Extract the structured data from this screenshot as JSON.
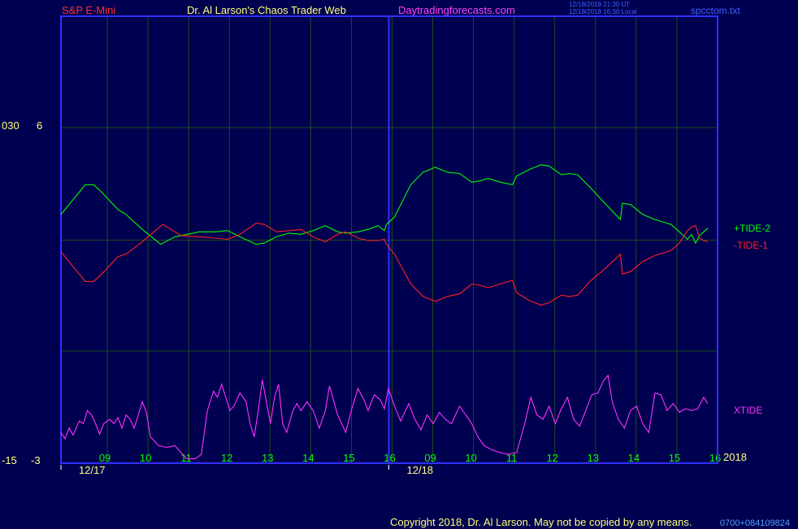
{
  "header": {
    "instrument": "S&P E-Mini",
    "site_title": "Dr. Al Larson's Chaos Trader Web",
    "site_url": "Daytradingforecasts.com",
    "timestamp_line1": "12/18/2018 21:30 UT",
    "timestamp_line2": "12/18/2018 16:30 Local",
    "file_name": "spcctom.txt"
  },
  "left_scale": {
    "top_left_label": "030",
    "top_right_label": "6",
    "bottom_left_label": "-15",
    "bottom_right_label": "-3"
  },
  "colors": {
    "background": "#000050",
    "frame": "#3030ff",
    "grid": "#1c4a1c",
    "tide_plus": "#00ff00",
    "tide_minus": "#ff2020",
    "xtide": "#ff30ff",
    "hour_label": "#00ff00",
    "date_label": "#ffff80",
    "instrument_label": "#ff3030",
    "title_label": "#ffff80",
    "url_label": "#ff40ff",
    "info_label": "#4060ff"
  },
  "footer": {
    "copyright": "Copyright 2018, Dr. Al Larson. May not be copied by any means.",
    "code": "0700+084109824"
  },
  "year_label": "2018",
  "chart_data": {
    "type": "line",
    "x_unit": "hour",
    "x_ticks": [
      {
        "label": "09",
        "x": 0.9
      },
      {
        "label": "10",
        "x": 1.9
      },
      {
        "label": "11",
        "x": 2.9
      },
      {
        "label": "12",
        "x": 3.9
      },
      {
        "label": "13",
        "x": 4.9
      },
      {
        "label": "14",
        "x": 5.9
      },
      {
        "label": "15",
        "x": 6.9
      },
      {
        "label": "16",
        "x": 7.9
      },
      {
        "label": "09",
        "x": 8.9
      },
      {
        "label": "10",
        "x": 9.9
      },
      {
        "label": "11",
        "x": 10.9
      },
      {
        "label": "12",
        "x": 11.9
      },
      {
        "label": "13",
        "x": 12.9
      },
      {
        "label": "14",
        "x": 13.9
      },
      {
        "label": "15",
        "x": 14.9
      },
      {
        "label": "16",
        "x": 15.9
      }
    ],
    "date_labels": [
      {
        "label": "12/17",
        "x": 0
      },
      {
        "label": "12/18",
        "x": 8
      }
    ],
    "xlim": [
      0,
      15.9
    ],
    "y_label_top": "6",
    "y_label_bottom": "-3",
    "ylim": [
      -3,
      6
    ],
    "grid": true,
    "series": [
      {
        "name": "+TIDE-2",
        "role": "tide_plus",
        "points": [
          [
            0,
            2.5
          ],
          [
            0.35,
            3.2
          ],
          [
            0.6,
            3.7
          ],
          [
            0.8,
            3.7
          ],
          [
            1.0,
            3.4
          ],
          [
            1.4,
            2.7
          ],
          [
            1.6,
            2.5
          ],
          [
            2.0,
            1.9
          ],
          [
            2.45,
            1.3
          ],
          [
            2.8,
            1.6
          ],
          [
            2.95,
            1.65
          ],
          [
            3.4,
            1.8
          ],
          [
            3.8,
            1.8
          ],
          [
            4.1,
            1.85
          ],
          [
            4.4,
            1.6
          ],
          [
            4.8,
            1.3
          ],
          [
            5.0,
            1.35
          ],
          [
            5.3,
            1.6
          ],
          [
            5.6,
            1.75
          ],
          [
            5.9,
            1.7
          ],
          [
            6.2,
            1.85
          ],
          [
            6.5,
            2.05
          ],
          [
            6.8,
            1.8
          ],
          [
            7.0,
            1.75
          ],
          [
            7.3,
            1.8
          ],
          [
            7.55,
            1.9
          ],
          [
            7.8,
            2.05
          ],
          [
            7.95,
            1.85
          ],
          [
            8.0,
            2.1
          ],
          [
            8.2,
            2.4
          ],
          [
            8.6,
            3.7
          ],
          [
            8.9,
            4.2
          ],
          [
            9.2,
            4.4
          ],
          [
            9.5,
            4.2
          ],
          [
            9.8,
            4.15
          ],
          [
            10.1,
            3.8
          ],
          [
            10.3,
            3.85
          ],
          [
            10.5,
            3.95
          ],
          [
            10.8,
            3.8
          ],
          [
            11.1,
            3.7
          ],
          [
            11.2,
            4.05
          ],
          [
            11.5,
            4.3
          ],
          [
            11.8,
            4.5
          ],
          [
            12.0,
            4.45
          ],
          [
            12.3,
            4.1
          ],
          [
            12.5,
            4.15
          ],
          [
            12.7,
            4.1
          ],
          [
            13.0,
            3.6
          ],
          [
            13.4,
            2.9
          ],
          [
            13.75,
            2.3
          ],
          [
            13.8,
            2.95
          ],
          [
            14.0,
            2.9
          ],
          [
            14.3,
            2.5
          ],
          [
            14.6,
            2.3
          ],
          [
            15.0,
            2.1
          ],
          [
            15.2,
            1.8
          ],
          [
            15.4,
            1.5
          ],
          [
            15.5,
            1.7
          ],
          [
            15.6,
            1.35
          ],
          [
            15.7,
            1.65
          ],
          [
            15.8,
            1.8
          ],
          [
            15.9,
            1.95
          ]
        ]
      },
      {
        "name": "-TIDE-1",
        "role": "tide_minus",
        "points": [
          [
            0,
            1.0
          ],
          [
            0.35,
            0.3
          ],
          [
            0.6,
            -0.2
          ],
          [
            0.8,
            -0.2
          ],
          [
            1.0,
            0.1
          ],
          [
            1.4,
            0.8
          ],
          [
            1.6,
            0.9
          ],
          [
            2.0,
            1.4
          ],
          [
            2.5,
            2.1
          ],
          [
            2.8,
            1.8
          ],
          [
            2.95,
            1.65
          ],
          [
            3.4,
            1.6
          ],
          [
            3.8,
            1.55
          ],
          [
            4.1,
            1.5
          ],
          [
            4.4,
            1.7
          ],
          [
            4.8,
            2.15
          ],
          [
            5.0,
            2.1
          ],
          [
            5.3,
            1.8
          ],
          [
            5.6,
            1.85
          ],
          [
            5.9,
            1.9
          ],
          [
            6.2,
            1.6
          ],
          [
            6.5,
            1.4
          ],
          [
            6.8,
            1.7
          ],
          [
            7.0,
            1.8
          ],
          [
            7.3,
            1.55
          ],
          [
            7.55,
            1.45
          ],
          [
            7.8,
            1.45
          ],
          [
            7.95,
            1.5
          ],
          [
            8.0,
            1.3
          ],
          [
            8.2,
            0.9
          ],
          [
            8.6,
            -0.3
          ],
          [
            8.9,
            -0.8
          ],
          [
            9.2,
            -1.0
          ],
          [
            9.5,
            -0.8
          ],
          [
            9.8,
            -0.7
          ],
          [
            10.1,
            -0.3
          ],
          [
            10.3,
            -0.35
          ],
          [
            10.5,
            -0.45
          ],
          [
            10.8,
            -0.3
          ],
          [
            11.1,
            -0.15
          ],
          [
            11.2,
            -0.65
          ],
          [
            11.5,
            -0.95
          ],
          [
            11.8,
            -1.15
          ],
          [
            12.0,
            -1.05
          ],
          [
            12.3,
            -0.75
          ],
          [
            12.5,
            -0.8
          ],
          [
            12.7,
            -0.75
          ],
          [
            13.0,
            -0.2
          ],
          [
            13.4,
            0.35
          ],
          [
            13.75,
            0.9
          ],
          [
            13.8,
            0.1
          ],
          [
            14.0,
            0.2
          ],
          [
            14.3,
            0.6
          ],
          [
            14.6,
            0.85
          ],
          [
            15.0,
            1.05
          ],
          [
            15.2,
            1.35
          ],
          [
            15.4,
            1.85
          ],
          [
            15.5,
            2.0
          ],
          [
            15.6,
            2.05
          ],
          [
            15.7,
            1.55
          ],
          [
            15.8,
            1.45
          ],
          [
            15.9,
            1.4
          ]
        ]
      },
      {
        "name": "XTIDE",
        "role": "xtide",
        "y_range": [
          0,
          1
        ],
        "points": [
          [
            0,
            0.35
          ],
          [
            0.1,
            0.28
          ],
          [
            0.2,
            0.4
          ],
          [
            0.3,
            0.32
          ],
          [
            0.45,
            0.48
          ],
          [
            0.55,
            0.45
          ],
          [
            0.65,
            0.6
          ],
          [
            0.75,
            0.55
          ],
          [
            0.85,
            0.45
          ],
          [
            0.95,
            0.33
          ],
          [
            1.05,
            0.45
          ],
          [
            1.2,
            0.5
          ],
          [
            1.3,
            0.45
          ],
          [
            1.4,
            0.52
          ],
          [
            1.5,
            0.4
          ],
          [
            1.6,
            0.55
          ],
          [
            1.7,
            0.5
          ],
          [
            1.8,
            0.4
          ],
          [
            1.9,
            0.55
          ],
          [
            2.0,
            0.7
          ],
          [
            2.1,
            0.58
          ],
          [
            2.2,
            0.3
          ],
          [
            2.4,
            0.2
          ],
          [
            2.6,
            0.18
          ],
          [
            2.8,
            0.2
          ],
          [
            2.95,
            0.12
          ],
          [
            3.1,
            0.05
          ],
          [
            3.3,
            0.05
          ],
          [
            3.45,
            0.1
          ],
          [
            3.6,
            0.6
          ],
          [
            3.75,
            0.82
          ],
          [
            3.85,
            0.75
          ],
          [
            3.95,
            0.9
          ],
          [
            4.05,
            0.75
          ],
          [
            4.15,
            0.6
          ],
          [
            4.25,
            0.65
          ],
          [
            4.4,
            0.8
          ],
          [
            4.55,
            0.7
          ],
          [
            4.65,
            0.45
          ],
          [
            4.75,
            0.3
          ],
          [
            4.85,
            0.6
          ],
          [
            4.95,
            0.95
          ],
          [
            5.05,
            0.7
          ],
          [
            5.15,
            0.45
          ],
          [
            5.25,
            0.75
          ],
          [
            5.35,
            0.9
          ],
          [
            5.45,
            0.45
          ],
          [
            5.55,
            0.35
          ],
          [
            5.7,
            0.6
          ],
          [
            5.8,
            0.68
          ],
          [
            5.9,
            0.6
          ],
          [
            6.05,
            0.7
          ],
          [
            6.2,
            0.6
          ],
          [
            6.35,
            0.4
          ],
          [
            6.5,
            0.6
          ],
          [
            6.6,
            0.88
          ],
          [
            6.7,
            0.72
          ],
          [
            6.8,
            0.55
          ],
          [
            6.9,
            0.45
          ],
          [
            7.0,
            0.35
          ],
          [
            7.15,
            0.62
          ],
          [
            7.3,
            0.85
          ],
          [
            7.45,
            0.72
          ],
          [
            7.55,
            0.6
          ],
          [
            7.7,
            0.78
          ],
          [
            7.85,
            0.72
          ],
          [
            7.95,
            0.62
          ],
          [
            8.05,
            0.85
          ],
          [
            8.2,
            0.65
          ],
          [
            8.35,
            0.48
          ],
          [
            8.45,
            0.58
          ],
          [
            8.55,
            0.68
          ],
          [
            8.7,
            0.5
          ],
          [
            8.85,
            0.38
          ],
          [
            9.0,
            0.55
          ],
          [
            9.15,
            0.45
          ],
          [
            9.3,
            0.58
          ],
          [
            9.45,
            0.5
          ],
          [
            9.6,
            0.45
          ],
          [
            9.8,
            0.65
          ],
          [
            9.95,
            0.55
          ],
          [
            10.1,
            0.45
          ],
          [
            10.25,
            0.3
          ],
          [
            10.4,
            0.2
          ],
          [
            10.6,
            0.15
          ],
          [
            10.8,
            0.12
          ],
          [
            11.0,
            0.1
          ],
          [
            11.2,
            0.12
          ],
          [
            11.4,
            0.45
          ],
          [
            11.55,
            0.75
          ],
          [
            11.7,
            0.55
          ],
          [
            11.85,
            0.5
          ],
          [
            12.0,
            0.65
          ],
          [
            12.15,
            0.45
          ],
          [
            12.3,
            0.62
          ],
          [
            12.45,
            0.75
          ],
          [
            12.6,
            0.5
          ],
          [
            12.75,
            0.42
          ],
          [
            12.9,
            0.6
          ],
          [
            13.05,
            0.78
          ],
          [
            13.2,
            0.8
          ],
          [
            13.35,
            0.95
          ],
          [
            13.45,
            1.0
          ],
          [
            13.55,
            0.7
          ],
          [
            13.7,
            0.5
          ],
          [
            13.85,
            0.4
          ],
          [
            14.0,
            0.6
          ],
          [
            14.15,
            0.65
          ],
          [
            14.3,
            0.45
          ],
          [
            14.45,
            0.35
          ],
          [
            14.6,
            0.8
          ],
          [
            14.75,
            0.78
          ],
          [
            14.9,
            0.6
          ],
          [
            15.05,
            0.68
          ],
          [
            15.2,
            0.58
          ],
          [
            15.35,
            0.62
          ],
          [
            15.5,
            0.6
          ],
          [
            15.65,
            0.62
          ],
          [
            15.8,
            0.75
          ],
          [
            15.9,
            0.68
          ]
        ]
      }
    ]
  }
}
